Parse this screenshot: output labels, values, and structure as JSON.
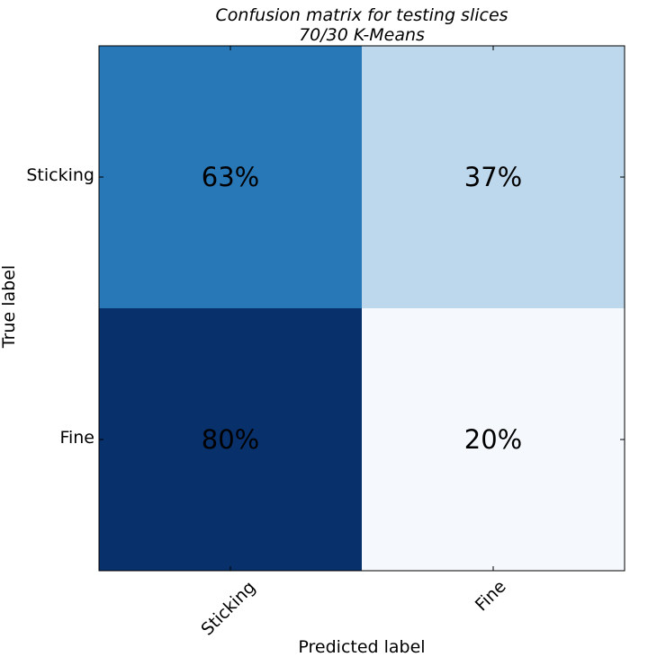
{
  "chart_data": {
    "type": "heatmap",
    "title": [
      "Confusion matrix for testing slices",
      "70/30 K-Means"
    ],
    "xlabel": "Predicted label",
    "ylabel": "True label",
    "x_categories": [
      "Sticking",
      "Fine"
    ],
    "y_categories": [
      "Sticking",
      "Fine"
    ],
    "values": [
      [
        63,
        37
      ],
      [
        80,
        20
      ]
    ],
    "value_labels": [
      [
        "63%",
        "37%"
      ],
      [
        "80%",
        "20%"
      ]
    ],
    "colormap": "Blues",
    "cell_colors": [
      [
        "#2878b8",
        "#bdd7ec"
      ],
      [
        "#08306b",
        "#f5f9fe"
      ]
    ],
    "grid": false
  }
}
